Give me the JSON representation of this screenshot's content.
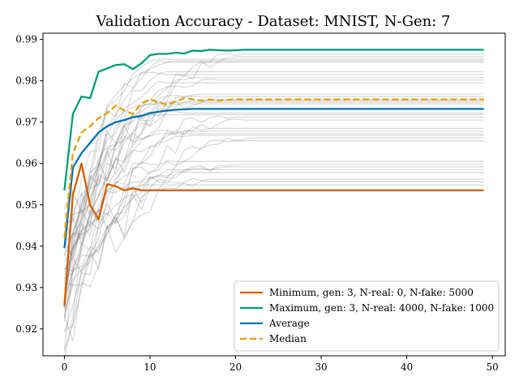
{
  "chart_data": {
    "type": "line",
    "title": "Validation Accuracy - Dataset: MNIST, N-Gen: 7",
    "xlabel": "",
    "ylabel": "",
    "xlim": [
      -2.5,
      51.5
    ],
    "ylim": [
      0.9135,
      0.9915
    ],
    "xticks": [
      0,
      10,
      20,
      30,
      40,
      50
    ],
    "yticks": [
      0.92,
      0.93,
      0.94,
      0.95,
      0.96,
      0.97,
      0.98,
      0.99
    ],
    "grid": false,
    "legend_position": "lower-right",
    "epochs": 50,
    "background_run_finals": [
      0.9865,
      0.9858,
      0.9852,
      0.9848,
      0.9845,
      0.9822,
      0.9815,
      0.9808,
      0.9802,
      0.9795,
      0.9768,
      0.9762,
      0.9755,
      0.9752,
      0.9748,
      0.9744,
      0.9722,
      0.9718,
      0.9712,
      0.9705,
      0.9685,
      0.9678,
      0.9672,
      0.9668,
      0.9662,
      0.9655,
      0.9605,
      0.9598,
      0.9592,
      0.9585,
      0.9578,
      0.9562,
      0.9556,
      0.9548
    ],
    "series": [
      {
        "name": "Minimum, gen: 3, N-real: 0, N-fake: 5000",
        "color": "#d55e00",
        "dash": "solid",
        "values": [
          0.9255,
          0.9525,
          0.96,
          0.95,
          0.9465,
          0.955,
          0.9545,
          0.9535,
          0.954,
          0.9535,
          0.9535,
          0.9535,
          0.9535,
          0.9535,
          0.9535,
          0.9535,
          0.9535,
          0.9535,
          0.9535,
          0.9535,
          0.9535,
          0.9535,
          0.9535,
          0.9535,
          0.9535,
          0.9535,
          0.9535,
          0.9535,
          0.9535,
          0.9535,
          0.9535,
          0.9535,
          0.9535,
          0.9535,
          0.9535,
          0.9535,
          0.9535,
          0.9535,
          0.9535,
          0.9535,
          0.9535,
          0.9535,
          0.9535,
          0.9535,
          0.9535,
          0.9535,
          0.9535,
          0.9535,
          0.9535,
          0.9535
        ]
      },
      {
        "name": "Maximum, gen: 3, N-real: 4000, N-fake: 1000",
        "color": "#009e73",
        "dash": "solid",
        "values": [
          0.9535,
          0.972,
          0.9762,
          0.9758,
          0.9822,
          0.983,
          0.9838,
          0.984,
          0.9828,
          0.9842,
          0.9862,
          0.9865,
          0.9865,
          0.9868,
          0.9866,
          0.9873,
          0.9872,
          0.9875,
          0.9874,
          0.9873,
          0.9874,
          0.9875,
          0.9875,
          0.9875,
          0.9875,
          0.9875,
          0.9875,
          0.9875,
          0.9875,
          0.9875,
          0.9875,
          0.9875,
          0.9875,
          0.9875,
          0.9875,
          0.9875,
          0.9875,
          0.9875,
          0.9875,
          0.9875,
          0.9875,
          0.9875,
          0.9875,
          0.9875,
          0.9875,
          0.9875,
          0.9875,
          0.9875,
          0.9875,
          0.9875
        ]
      },
      {
        "name": "Average",
        "color": "#0072b2",
        "dash": "solid",
        "values": [
          0.9395,
          0.959,
          0.9625,
          0.965,
          0.9675,
          0.969,
          0.97,
          0.9705,
          0.9712,
          0.9715,
          0.9722,
          0.9725,
          0.9728,
          0.973,
          0.9731,
          0.9732,
          0.9732,
          0.9732,
          0.9732,
          0.9732,
          0.9732,
          0.9732,
          0.9732,
          0.9732,
          0.9732,
          0.9732,
          0.9732,
          0.9732,
          0.9732,
          0.9732,
          0.9732,
          0.9732,
          0.9732,
          0.9732,
          0.9732,
          0.9732,
          0.9732,
          0.9732,
          0.9732,
          0.9732,
          0.9732,
          0.9732,
          0.9732,
          0.9732,
          0.9732,
          0.9732,
          0.9732,
          0.9732,
          0.9732,
          0.9732
        ]
      },
      {
        "name": "Median",
        "color": "#e69f00",
        "dash": "dashed",
        "values": [
          0.942,
          0.9625,
          0.9675,
          0.969,
          0.971,
          0.9722,
          0.974,
          0.9728,
          0.972,
          0.9745,
          0.9755,
          0.9748,
          0.9742,
          0.975,
          0.9758,
          0.9755,
          0.9752,
          0.9755,
          0.9752,
          0.9754,
          0.9755,
          0.9755,
          0.9755,
          0.9755,
          0.9755,
          0.9755,
          0.9755,
          0.9755,
          0.9755,
          0.9755,
          0.9755,
          0.9755,
          0.9755,
          0.9755,
          0.9755,
          0.9755,
          0.9755,
          0.9755,
          0.9755,
          0.9755,
          0.9755,
          0.9755,
          0.9755,
          0.9755,
          0.9755,
          0.9755,
          0.9755,
          0.9755,
          0.9755,
          0.9755
        ]
      }
    ]
  }
}
